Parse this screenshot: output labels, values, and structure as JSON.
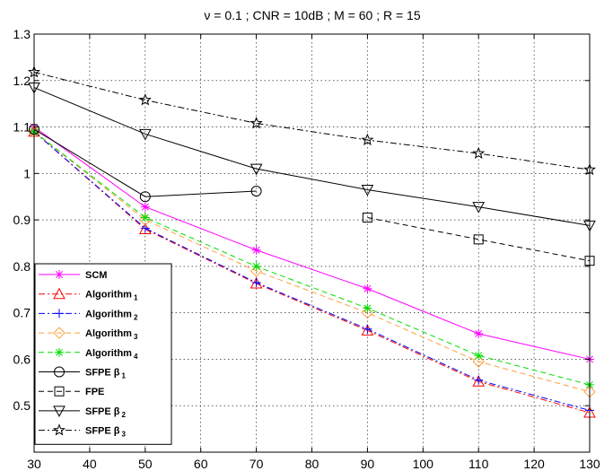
{
  "chart_data": {
    "type": "line",
    "title": "ν = 0.1 ; CNR = 10dB ; M = 60 ; R = 15",
    "xlabel": "",
    "ylabel": "",
    "xlim": [
      30,
      130
    ],
    "ylim": [
      0.4,
      1.3
    ],
    "xticks": [
      30,
      40,
      50,
      60,
      70,
      80,
      90,
      100,
      110,
      120,
      130
    ],
    "yticks": [
      0.5,
      0.6,
      0.7,
      0.8,
      0.9,
      1,
      1.1,
      1.2,
      1.3
    ],
    "ytick_labels": [
      "0.5",
      "0.6",
      "0.7",
      "0.8",
      "0.9",
      "1",
      "1.1",
      "1.2",
      "1.3"
    ],
    "grid": true,
    "legend_position": "bottom-left",
    "series": [
      {
        "name": "SCM",
        "main": "SCM",
        "sub": "",
        "color": "#ff00ff",
        "dash": "solid",
        "marker": "star",
        "x": [
          30,
          50,
          70,
          90,
          110,
          130
        ],
        "y": [
          1.1,
          0.928,
          0.835,
          0.752,
          0.655,
          0.6
        ]
      },
      {
        "name": "Algorithm 1",
        "main": "Algorithm",
        "sub": "1",
        "color": "#ff0000",
        "dash": "dashdot",
        "marker": "triangle",
        "x": [
          30,
          50,
          70,
          90,
          110,
          130
        ],
        "y": [
          1.09,
          0.88,
          0.763,
          0.662,
          0.552,
          0.485
        ]
      },
      {
        "name": "Algorithm 2",
        "main": "Algorithm",
        "sub": "2",
        "color": "#0000ff",
        "dash": "dashdot",
        "marker": "plus",
        "x": [
          30,
          50,
          70,
          90,
          110,
          130
        ],
        "y": [
          1.09,
          0.882,
          0.765,
          0.665,
          0.555,
          0.49
        ]
      },
      {
        "name": "Algorithm 3",
        "main": "Algorithm",
        "sub": "3",
        "color": "#ffa040",
        "dash": "dashed",
        "marker": "diamond",
        "x": [
          30,
          50,
          70,
          90,
          110,
          130
        ],
        "y": [
          1.09,
          0.9,
          0.79,
          0.7,
          0.595,
          0.53
        ]
      },
      {
        "name": "Algorithm 4",
        "main": "Algorithm",
        "sub": "4",
        "color": "#00dd00",
        "dash": "dashed",
        "marker": "star",
        "x": [
          30,
          50,
          70,
          90,
          110,
          130
        ],
        "y": [
          1.09,
          0.905,
          0.8,
          0.71,
          0.608,
          0.545
        ]
      },
      {
        "name": "SFPE β1",
        "main": "SFPE β",
        "sub": "1",
        "color": "#000000",
        "dash": "solid",
        "marker": "circle",
        "x": [
          30,
          50,
          70
        ],
        "y": [
          1.095,
          0.95,
          0.962
        ]
      },
      {
        "name": "FPE",
        "main": "FPE",
        "sub": "",
        "color": "#000000",
        "dash": "dashed",
        "marker": "square",
        "x": [
          90,
          110,
          130
        ],
        "y": [
          0.905,
          0.858,
          0.812
        ]
      },
      {
        "name": "SFPE β2",
        "main": "SFPE β",
        "sub": "2",
        "color": "#000000",
        "dash": "solid",
        "marker": "triangle-down",
        "x": [
          30,
          50,
          70,
          90,
          110,
          130
        ],
        "y": [
          1.185,
          1.085,
          1.01,
          0.965,
          0.928,
          0.888
        ]
      },
      {
        "name": "SFPE β3",
        "main": "SFPE β",
        "sub": "3",
        "color": "#000000",
        "dash": "dashdot",
        "marker": "pentagram",
        "x": [
          30,
          50,
          70,
          90,
          110,
          130
        ],
        "y": [
          1.218,
          1.158,
          1.108,
          1.072,
          1.043,
          1.008
        ]
      }
    ]
  }
}
